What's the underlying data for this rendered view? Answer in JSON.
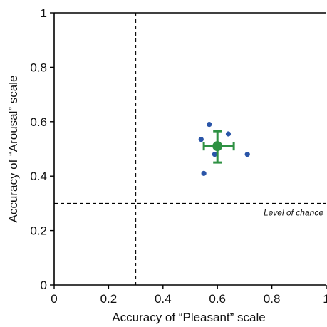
{
  "chart_data": {
    "type": "scatter",
    "title": "",
    "xlabel": "Accuracy of “Pleasant” scale",
    "ylabel": "Accuracy of “Arousal” scale",
    "xlim": [
      0,
      1
    ],
    "ylim": [
      0,
      1
    ],
    "x_ticks": [
      0,
      0.2,
      0.4,
      0.6,
      0.8,
      1
    ],
    "y_ticks": [
      0,
      0.2,
      0.4,
      0.6,
      0.8,
      1
    ],
    "x_tick_labels": [
      "0",
      "0.2",
      "0.4",
      "0.6",
      "0.8",
      "1"
    ],
    "y_tick_labels": [
      "0",
      "0.2",
      "0.4",
      "0.6",
      "0.8",
      "1"
    ],
    "grid": false,
    "series": [
      {
        "color": "#2a55a8",
        "points": [
          {
            "x": 0.57,
            "y": 0.59
          },
          {
            "x": 0.54,
            "y": 0.535
          },
          {
            "x": 0.64,
            "y": 0.555
          },
          {
            "x": 0.59,
            "y": 0.48
          },
          {
            "x": 0.71,
            "y": 0.48
          },
          {
            "x": 0.55,
            "y": 0.41
          }
        ]
      },
      {
        "color": "#2e9143",
        "points": [
          {
            "x": 0.6,
            "y": 0.51,
            "x_err": [
              0.55,
              0.66
            ],
            "y_err": [
              0.45,
              0.565
            ]
          }
        ]
      }
    ],
    "chance_lines": {
      "x": 0.3,
      "y": 0.3,
      "label": "Level of chance"
    }
  }
}
